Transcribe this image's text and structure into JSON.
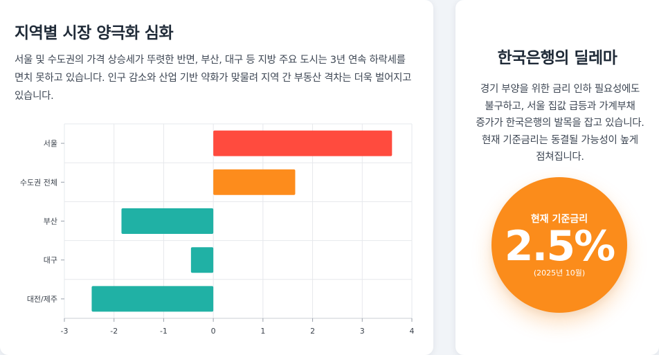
{
  "left_card": {
    "title": "지역별 시장 양극화 심화",
    "paragraph": "서울 및 수도권의 가격 상승세가 뚜렷한 반면, 부산, 대구 등 지방 주요 도시는 3년 연속 하락세를 면치 못하고 있습니다. 인구 감소와 산업 기반 약화가 맞물려 지역 간 부동산 격차는 더욱 벌어지고 있습니다."
  },
  "chart_data": {
    "type": "bar",
    "orientation": "horizontal",
    "categories": [
      "서울",
      "수도권 전체",
      "부산",
      "대구",
      "대전/제주"
    ],
    "values": [
      3.6,
      1.65,
      -1.85,
      -0.45,
      -2.45
    ],
    "colors": [
      "#ff4b3e",
      "#fd8c1c",
      "#20b1a5",
      "#20b1a5",
      "#20b1a5"
    ],
    "xlim": [
      -3,
      4
    ],
    "xticks": [
      "-3",
      "-2",
      "-1",
      "0",
      "1",
      "2",
      "3",
      "4"
    ],
    "grid": true
  },
  "right_card": {
    "title": "한국은행의 딜레마",
    "paragraph": "경기 부양을 위한 금리 인하 필요성에도 불구하고, 서울 집값 급등과 가계부채 증가가 한국은행의 발목을 잡고 있습니다. 현재 기준금리는 동결될 가능성이 높게 점쳐집니다.",
    "rate_label": "현재 기준금리",
    "rate_value": "2.5%",
    "rate_date": "(2025년 10월)",
    "accent_color": "#fb8c1b"
  }
}
